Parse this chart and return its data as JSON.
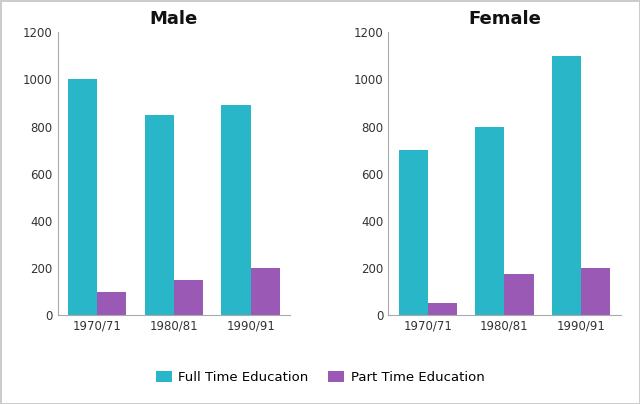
{
  "male_fulltime": [
    1000,
    850,
    890
  ],
  "male_parttime": [
    100,
    150,
    200
  ],
  "female_fulltime": [
    700,
    800,
    1100
  ],
  "female_parttime": [
    50,
    175,
    200
  ],
  "periods": [
    "1970/71",
    "1980/81",
    "1990/91"
  ],
  "ylim": [
    0,
    1200
  ],
  "yticks": [
    0,
    200,
    400,
    600,
    800,
    1000,
    1200
  ],
  "fulltime_color": "#29B6C8",
  "parttime_color": "#9B59B6",
  "male_title": "Male",
  "female_title": "Female",
  "legend_fulltime": "Full Time Education",
  "legend_parttime": "Part Time Education",
  "title_fontsize": 13,
  "background_color": "#ffffff",
  "axes_background": "#ffffff",
  "border_color": "#cccccc"
}
